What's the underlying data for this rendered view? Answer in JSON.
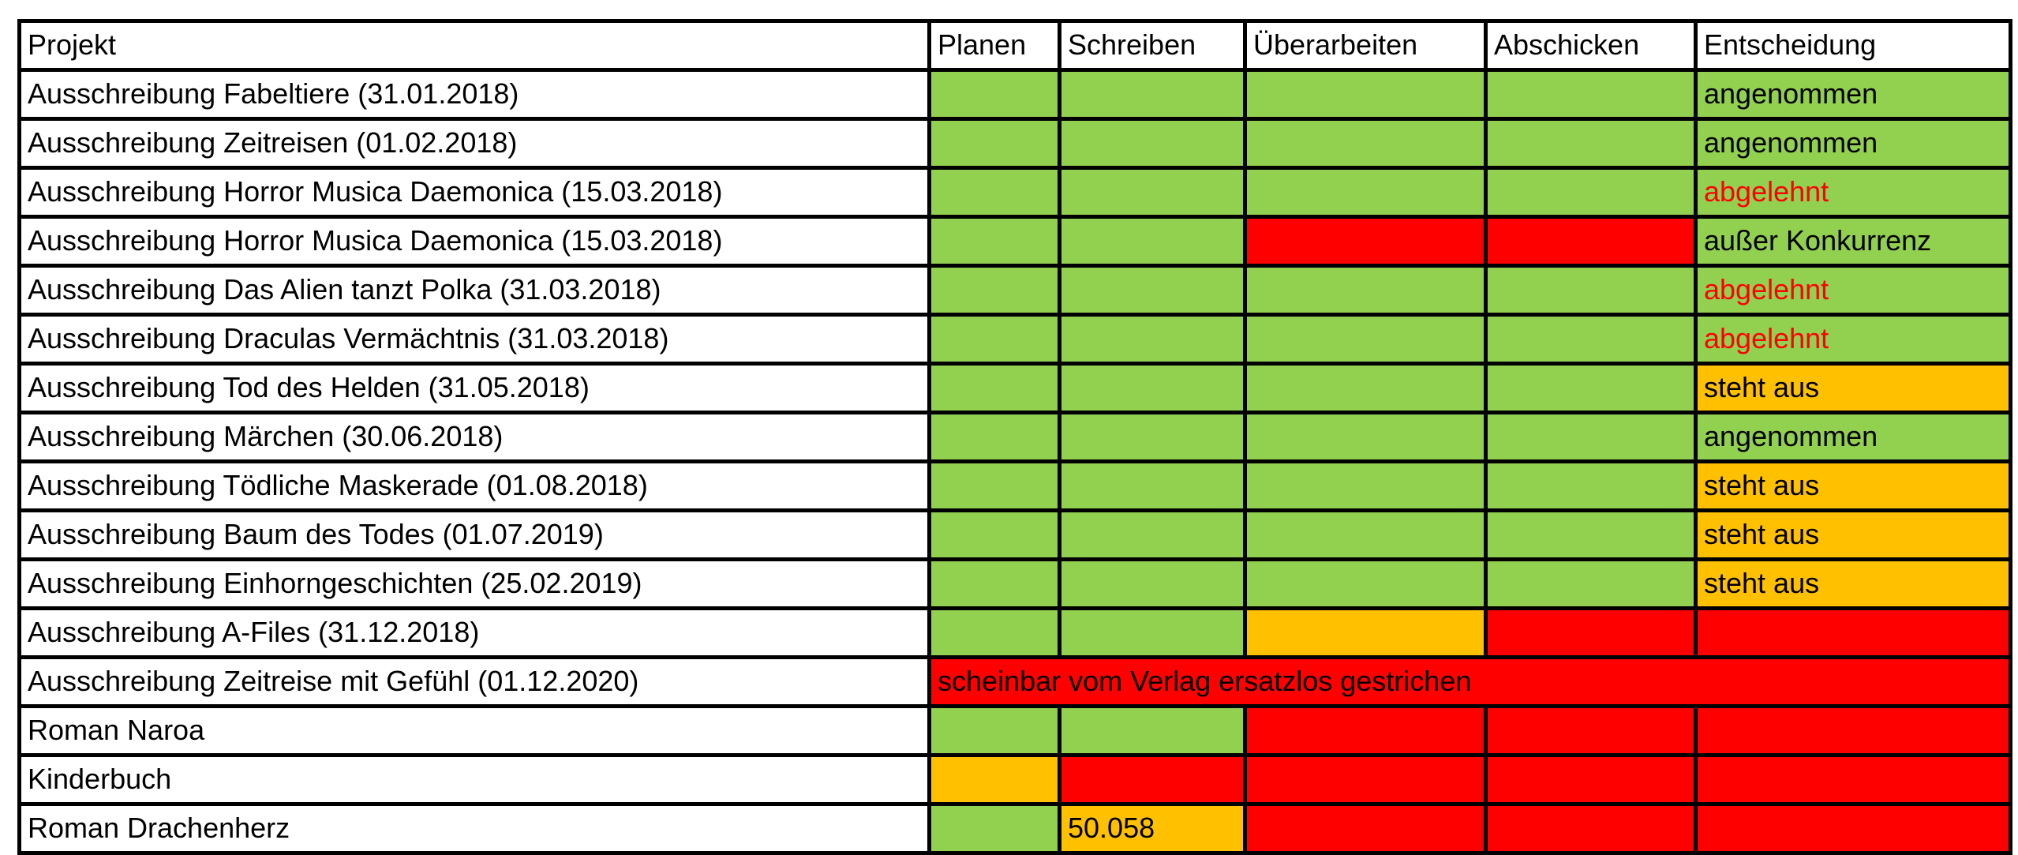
{
  "table": {
    "headers": [
      "Projekt",
      "Planen",
      "Schreiben",
      "Überarbeiten",
      "Abschicken",
      "Entscheidung"
    ],
    "colors": {
      "green": "#92D050",
      "orange": "#FFC000",
      "red": "#FF0000",
      "white": "#FFFFFF",
      "border": "#000000",
      "text": "#000000",
      "rejected_text": "#FF0000"
    },
    "rows": [
      {
        "project": "Ausschreibung Fabeltiere (31.01.2018)",
        "cells": [
          {
            "color": "green"
          },
          {
            "color": "green"
          },
          {
            "color": "green"
          },
          {
            "color": "green"
          },
          {
            "color": "green",
            "text": "angenommen"
          }
        ]
      },
      {
        "project": "Ausschreibung Zeitreisen (01.02.2018)",
        "cells": [
          {
            "color": "green"
          },
          {
            "color": "green"
          },
          {
            "color": "green"
          },
          {
            "color": "green"
          },
          {
            "color": "green",
            "text": "angenommen"
          }
        ]
      },
      {
        "project": "Ausschreibung Horror Musica Daemonica (15.03.2018)",
        "cells": [
          {
            "color": "green"
          },
          {
            "color": "green"
          },
          {
            "color": "green"
          },
          {
            "color": "green"
          },
          {
            "color": "green",
            "text": "abgelehnt",
            "style": "rejected"
          }
        ]
      },
      {
        "project": "Ausschreibung Horror Musica Daemonica (15.03.2018)",
        "cells": [
          {
            "color": "green"
          },
          {
            "color": "green"
          },
          {
            "color": "red"
          },
          {
            "color": "red"
          },
          {
            "color": "green",
            "text": "außer Konkurrenz"
          }
        ]
      },
      {
        "project": "Ausschreibung Das Alien tanzt Polka (31.03.2018)",
        "cells": [
          {
            "color": "green"
          },
          {
            "color": "green"
          },
          {
            "color": "green"
          },
          {
            "color": "green"
          },
          {
            "color": "green",
            "text": "abgelehnt",
            "style": "rejected"
          }
        ]
      },
      {
        "project": "Ausschreibung Draculas Vermächtnis (31.03.2018)",
        "cells": [
          {
            "color": "green"
          },
          {
            "color": "green"
          },
          {
            "color": "green"
          },
          {
            "color": "green"
          },
          {
            "color": "green",
            "text": "abgelehnt",
            "style": "rejected"
          }
        ]
      },
      {
        "project": "Ausschreibung Tod des Helden (31.05.2018)",
        "cells": [
          {
            "color": "green"
          },
          {
            "color": "green"
          },
          {
            "color": "green"
          },
          {
            "color": "green"
          },
          {
            "color": "orange",
            "text": "steht aus"
          }
        ]
      },
      {
        "project": "Ausschreibung Märchen (30.06.2018)",
        "cells": [
          {
            "color": "green"
          },
          {
            "color": "green"
          },
          {
            "color": "green"
          },
          {
            "color": "green"
          },
          {
            "color": "green",
            "text": "angenommen"
          }
        ]
      },
      {
        "project": "Ausschreibung Tödliche Maskerade (01.08.2018)",
        "cells": [
          {
            "color": "green"
          },
          {
            "color": "green"
          },
          {
            "color": "green"
          },
          {
            "color": "green"
          },
          {
            "color": "orange",
            "text": "steht aus"
          }
        ]
      },
      {
        "project": "Ausschreibung Baum des Todes (01.07.2019)",
        "cells": [
          {
            "color": "green"
          },
          {
            "color": "green"
          },
          {
            "color": "green"
          },
          {
            "color": "green"
          },
          {
            "color": "orange",
            "text": "steht aus"
          }
        ]
      },
      {
        "project": "Ausschreibung Einhorngeschichten (25.02.2019)",
        "cells": [
          {
            "color": "green"
          },
          {
            "color": "green"
          },
          {
            "color": "green"
          },
          {
            "color": "green"
          },
          {
            "color": "orange",
            "text": "steht aus"
          }
        ]
      },
      {
        "project": "Ausschreibung A-Files (31.12.2018)",
        "cells": [
          {
            "color": "green"
          },
          {
            "color": "green"
          },
          {
            "color": "orange"
          },
          {
            "color": "red"
          },
          {
            "color": "red"
          }
        ]
      },
      {
        "project": "Ausschreibung Zeitreise mit Gefühl (01.12.2020)",
        "merged": {
          "color": "red",
          "text": "scheinbar vom Verlag ersatzlos gestrichen",
          "colspan": 5
        }
      },
      {
        "project": "Roman Naroa",
        "cells": [
          {
            "color": "green"
          },
          {
            "color": "green"
          },
          {
            "color": "red"
          },
          {
            "color": "red"
          },
          {
            "color": "red"
          }
        ]
      },
      {
        "project": "Kinderbuch",
        "cells": [
          {
            "color": "orange"
          },
          {
            "color": "red"
          },
          {
            "color": "red"
          },
          {
            "color": "red"
          },
          {
            "color": "red"
          }
        ]
      },
      {
        "project": "Roman Drachenherz",
        "cells": [
          {
            "color": "green"
          },
          {
            "color": "orange",
            "text": "50.058",
            "align": "center"
          },
          {
            "color": "red"
          },
          {
            "color": "red"
          },
          {
            "color": "red"
          }
        ]
      }
    ]
  }
}
